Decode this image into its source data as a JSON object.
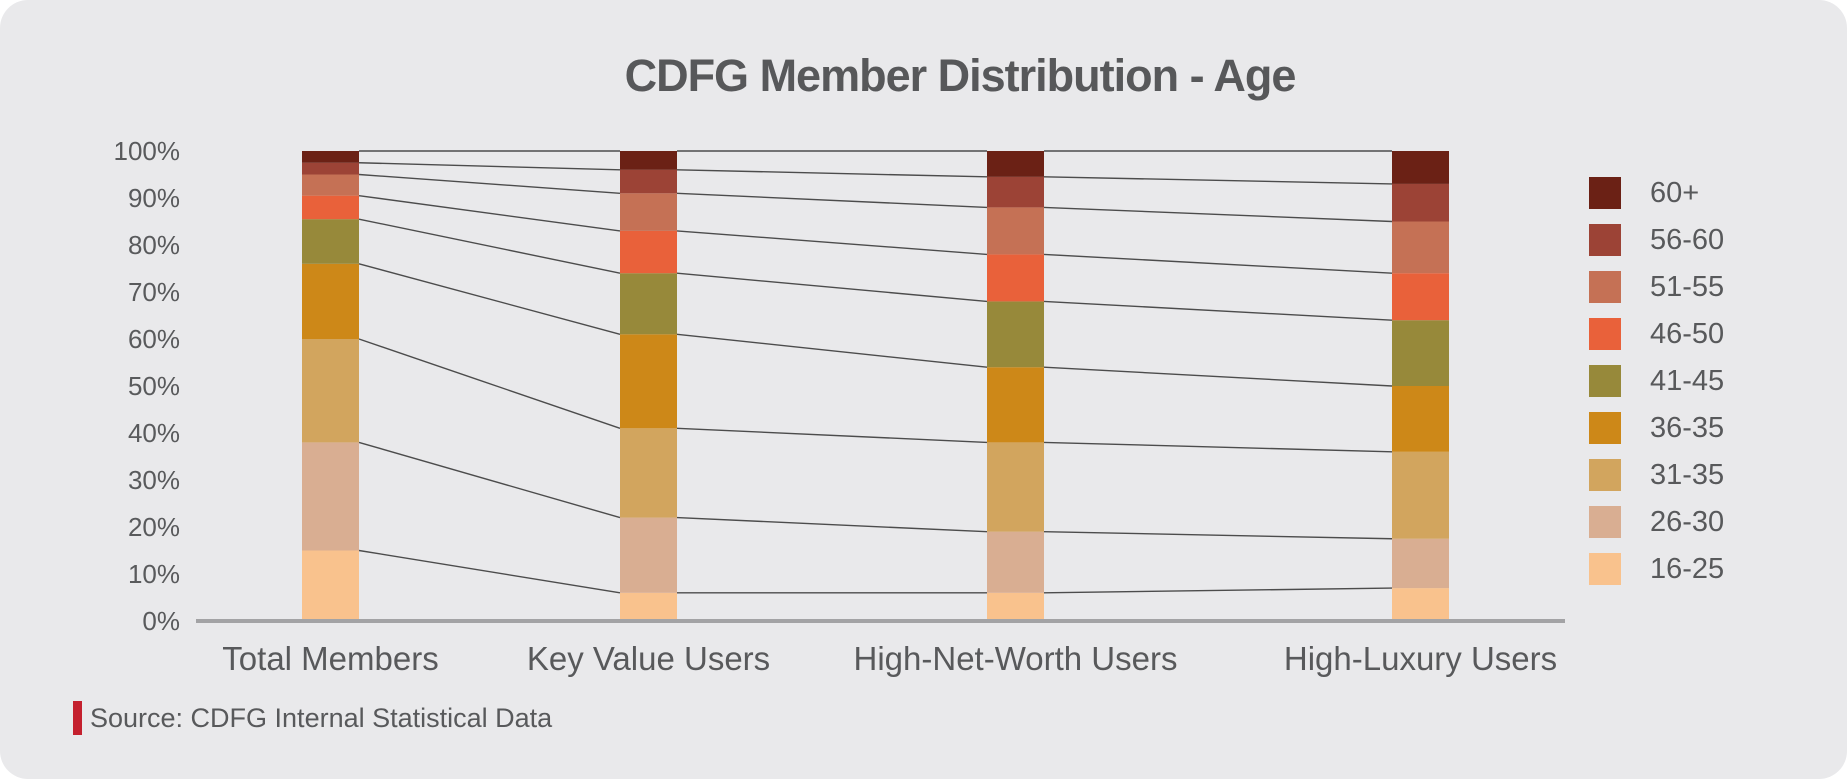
{
  "page": {
    "background": "#ffffff",
    "panel_color": "#e9e9eb",
    "text_color": "#58595b",
    "connector_line_color": "#4c4c4c",
    "baseline_color": "#a3a3a5"
  },
  "title": "CDFG Member Distribution - Age",
  "source": {
    "label": "Source: CDFG Internal Statistical Data",
    "marker_color": "#c4202e"
  },
  "chart_data": {
    "type": "bar",
    "stacked": true,
    "stacking": "percent",
    "title": "CDFG Member Distribution - Age",
    "categories": [
      "Total Members",
      "Key Value Users",
      "High-Net-Worth Users",
      "High-Luxury Users"
    ],
    "series": [
      {
        "name": "16-25",
        "color": "#f9c28d",
        "values": [
          15,
          6,
          6,
          7
        ]
      },
      {
        "name": "26-30",
        "color": "#d9ae92",
        "values": [
          23,
          16,
          13,
          10.5
        ]
      },
      {
        "name": "31-35",
        "color": "#d2a55e",
        "values": [
          22,
          19,
          19,
          18.5
        ]
      },
      {
        "name": "36-35",
        "color": "#cd8818",
        "values": [
          16,
          20,
          16,
          14
        ]
      },
      {
        "name": "41-45",
        "color": "#97893a",
        "values": [
          9.5,
          13,
          14,
          14
        ]
      },
      {
        "name": "46-50",
        "color": "#e9613a",
        "values": [
          5,
          9,
          10,
          10
        ]
      },
      {
        "name": "51-55",
        "color": "#c57155",
        "values": [
          4.5,
          8,
          10,
          11
        ]
      },
      {
        "name": "56-60",
        "color": "#9c4336",
        "values": [
          2.5,
          5,
          6.5,
          8
        ]
      },
      {
        "name": "60+",
        "color": "#6b2115",
        "values": [
          2.5,
          4,
          5.5,
          7
        ]
      }
    ],
    "legend": {
      "position": "right",
      "order": "reversed-top-to-bottom"
    },
    "ylim": [
      0,
      100
    ],
    "y_tick_labels": [
      "100%",
      "90%",
      "80%",
      "70%",
      "60%",
      "50%",
      "40%",
      "30%",
      "20%",
      "10%",
      "0%"
    ],
    "grid": false,
    "connector_lines_between_bars": true
  }
}
